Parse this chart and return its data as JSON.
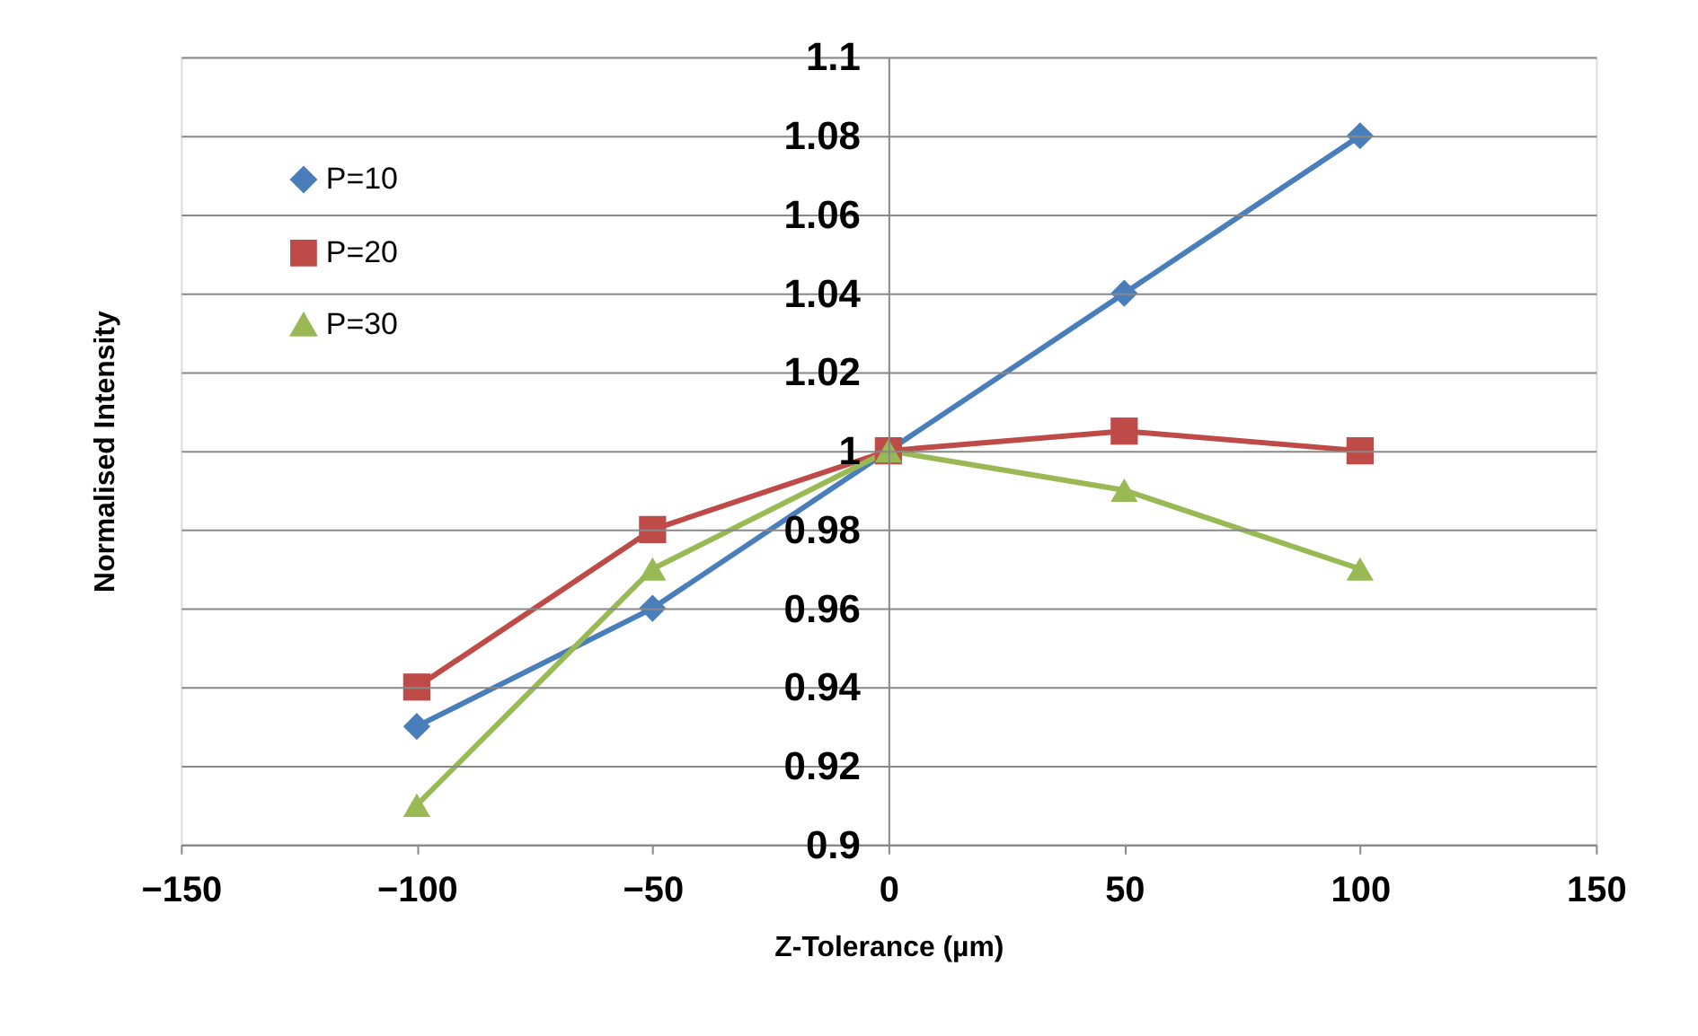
{
  "chart_data": {
    "type": "line",
    "xlabel": "Z-Tolerance (µm)",
    "ylabel": "Normalised Intensity",
    "x": [
      -100,
      -50,
      0,
      50,
      100
    ],
    "series": [
      {
        "name": "P=10",
        "color": "#4a7ebb",
        "marker": "diamond",
        "values": [
          0.93,
          0.96,
          1,
          1.04,
          1.08
        ]
      },
      {
        "name": "P=20",
        "color": "#be4b48",
        "marker": "square",
        "values": [
          0.94,
          0.98,
          1,
          1.005,
          1
        ]
      },
      {
        "name": "P=30",
        "color": "#98b954",
        "marker": "triangle",
        "values": [
          0.91,
          0.97,
          1,
          0.99,
          0.97
        ]
      }
    ],
    "xlim": [
      -150,
      150
    ],
    "xticks": [
      -150,
      -100,
      -50,
      0,
      50,
      100,
      150
    ],
    "ylim": [
      0.9,
      1.1
    ],
    "yticks": [
      0.9,
      0.92,
      0.94,
      0.96,
      0.98,
      1,
      1.02,
      1.04,
      1.06,
      1.08,
      1.1
    ],
    "grid": "y",
    "legend": "top left",
    "line_style": "solid"
  }
}
